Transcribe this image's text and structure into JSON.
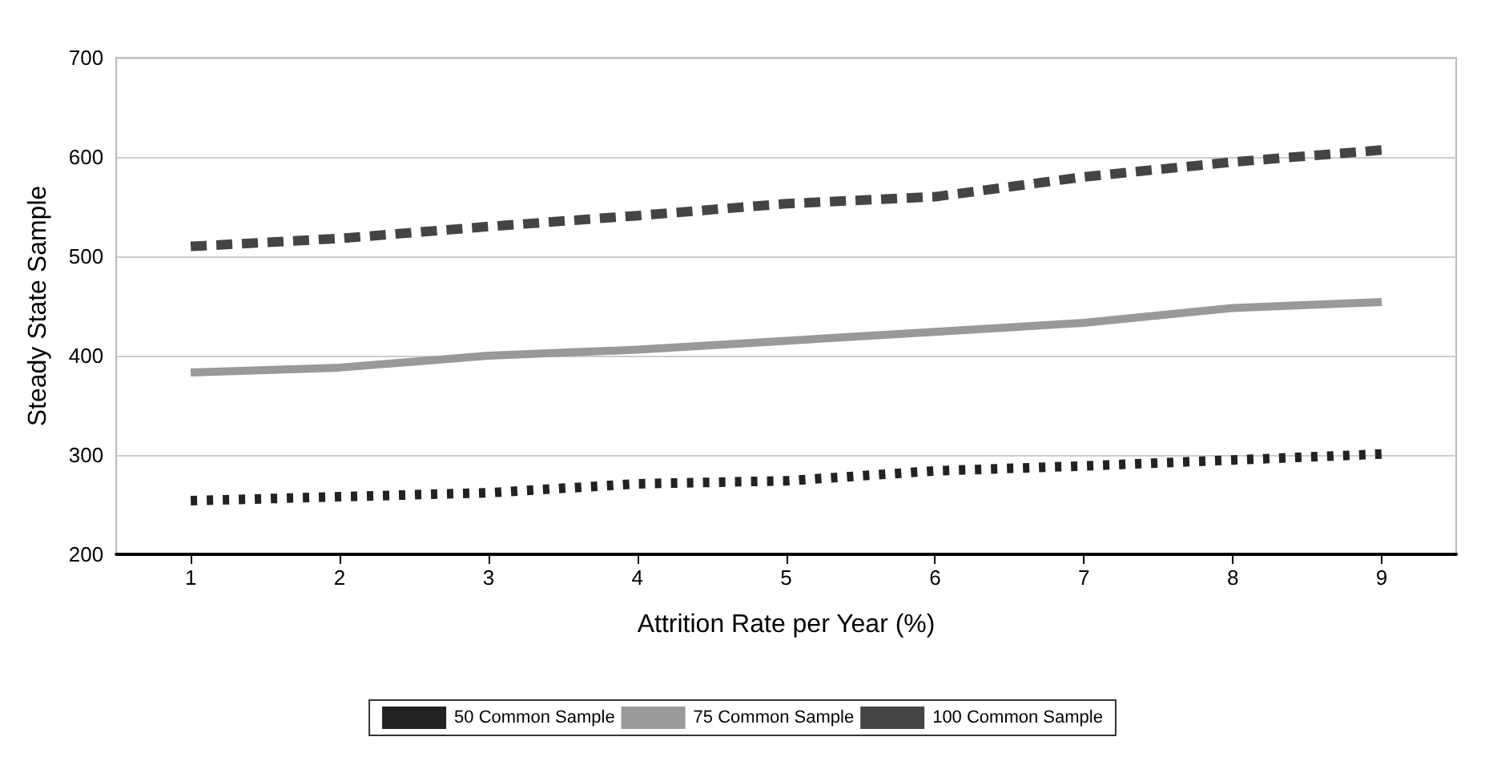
{
  "chart_data": {
    "type": "line",
    "xlabel": "Attrition Rate per Year (%)",
    "ylabel": "Steady State Sample",
    "categories": [
      "1",
      "2",
      "3",
      "4",
      "5",
      "6",
      "7",
      "8",
      "9"
    ],
    "series": [
      {
        "name": "50 Common Sample",
        "color": "#222222",
        "line_style": "dotted",
        "values": [
          254,
          258,
          262,
          271,
          274,
          284,
          289,
          295,
          301
        ]
      },
      {
        "name": "75 Common Sample",
        "color": "#999999",
        "line_style": "solid",
        "values": [
          383,
          388,
          400,
          406,
          415,
          424,
          433,
          448,
          454
        ]
      },
      {
        "name": "100 Common Sample",
        "color": "#444444",
        "line_style": "dashed",
        "values": [
          510,
          518,
          530,
          541,
          553,
          560,
          580,
          595,
          607
        ]
      }
    ],
    "ylim": [
      200,
      700
    ],
    "yticks": [
      200,
      300,
      400,
      500,
      600,
      700
    ],
    "grid": "y",
    "legend": "bottom",
    "marker": "none"
  }
}
